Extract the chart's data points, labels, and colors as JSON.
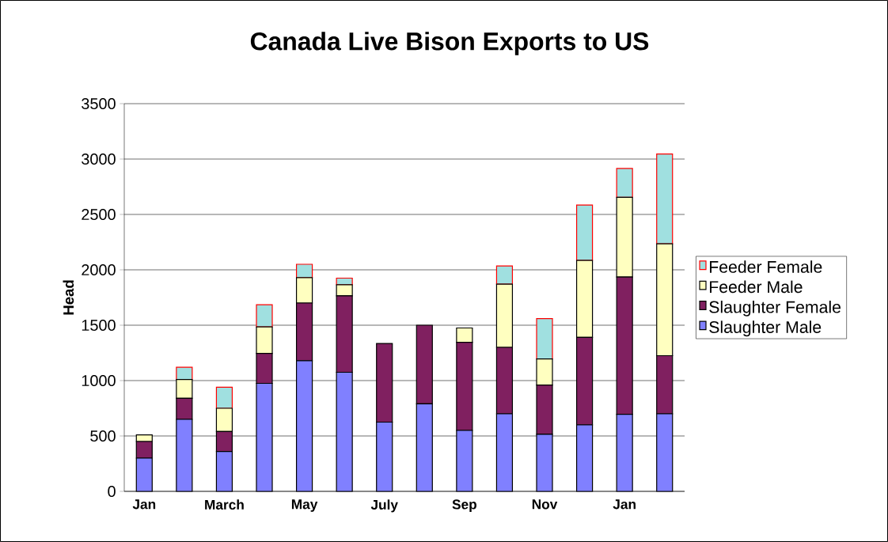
{
  "chart_data": {
    "type": "bar",
    "stacked": true,
    "title": "Canada Live Bison Exports to US",
    "ylabel": "Head",
    "categories": [
      "Jan",
      null,
      "March",
      null,
      "May",
      null,
      "July",
      null,
      "Sep",
      null,
      "Nov",
      null,
      "Jan",
      null
    ],
    "series": [
      {
        "name": "Slaughter Male",
        "color": "#8080ff",
        "values": [
          300,
          650,
          360,
          975,
          1180,
          1075,
          625,
          790,
          550,
          700,
          515,
          600,
          695,
          700
        ]
      },
      {
        "name": "Slaughter Female",
        "color": "#802060",
        "values": [
          150,
          190,
          180,
          270,
          520,
          690,
          710,
          710,
          795,
          600,
          445,
          790,
          1240,
          525
        ]
      },
      {
        "name": "Feeder Male",
        "color": "#ffffc0",
        "values": [
          60,
          170,
          210,
          240,
          230,
          100,
          0,
          0,
          130,
          570,
          235,
          695,
          720,
          1010
        ]
      },
      {
        "name": "Feeder Female",
        "color": "#a0e0e0",
        "values": [
          0,
          110,
          190,
          200,
          120,
          60,
          0,
          0,
          0,
          165,
          365,
          500,
          260,
          810
        ]
      }
    ],
    "ylim": [
      0,
      3500
    ],
    "yticks": [
      0,
      500,
      1000,
      1500,
      2000,
      2500,
      3000,
      3500
    ],
    "grid": "y",
    "legend": "right"
  }
}
